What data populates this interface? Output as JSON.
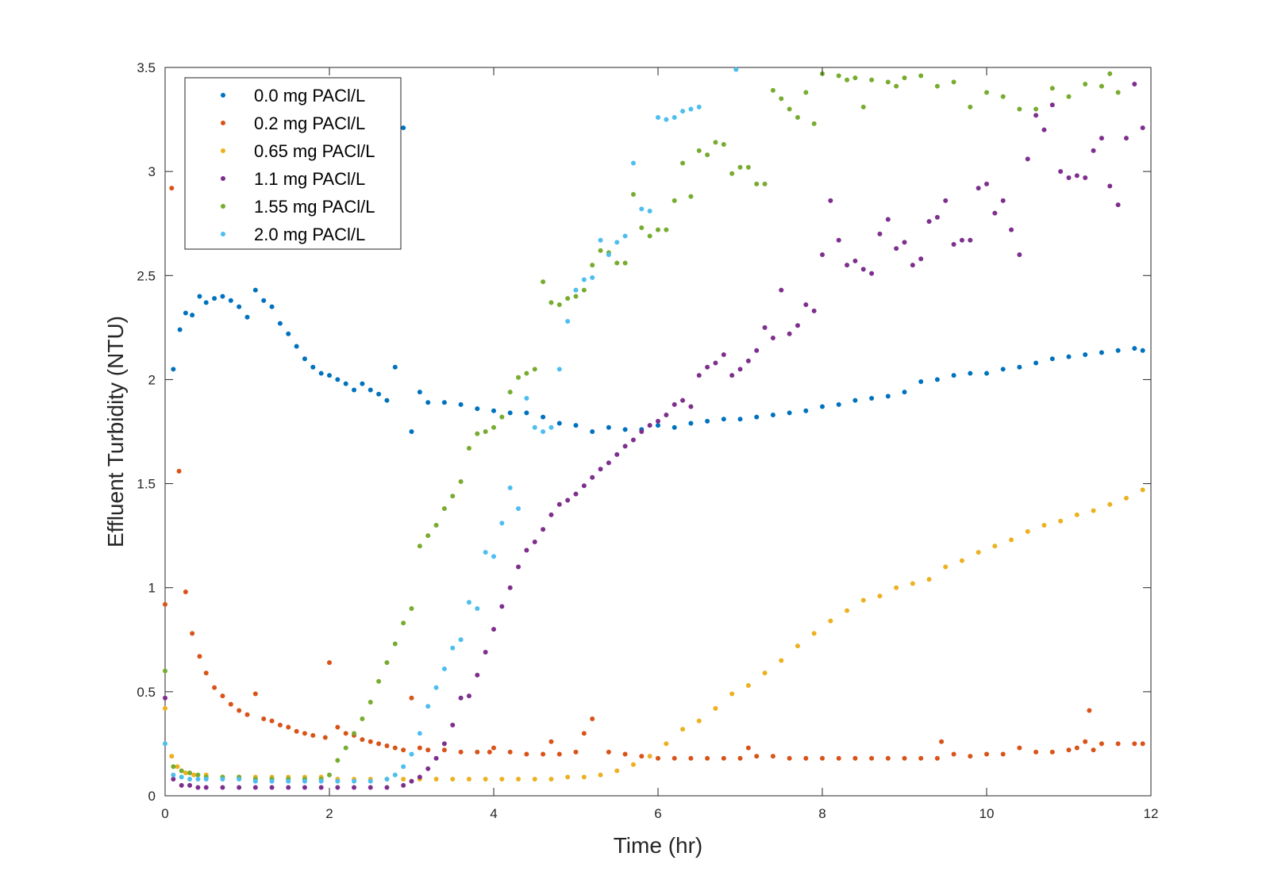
{
  "chart_data": {
    "type": "scatter",
    "title": "",
    "xlabel": "Time (hr)",
    "ylabel": "Effluent Turbidity (NTU)",
    "xlim": [
      0,
      12
    ],
    "ylim": [
      0,
      3.5
    ],
    "xticks": [
      0,
      2,
      4,
      6,
      8,
      10,
      12
    ],
    "yticks": [
      0,
      0.5,
      1,
      1.5,
      2,
      2.5,
      3,
      3.5
    ],
    "xtick_labels": [
      "0",
      "2",
      "4",
      "6",
      "8",
      "10",
      "12"
    ],
    "ytick_labels": [
      "0",
      "0.5",
      "1",
      "1.5",
      "2",
      "2.5",
      "3",
      "3.5"
    ],
    "grid": false,
    "legend_position": "top-left",
    "series": [
      {
        "name": "0.0 mg PACl/L",
        "color": "#0072BD",
        "x": [
          0.1,
          0.18,
          0.25,
          0.33,
          0.42,
          0.5,
          0.6,
          0.7,
          0.8,
          0.9,
          1.0,
          1.1,
          1.2,
          1.3,
          1.4,
          1.5,
          1.6,
          1.7,
          1.8,
          1.9,
          2.0,
          2.1,
          2.2,
          2.3,
          2.4,
          2.5,
          2.6,
          2.7,
          2.8,
          2.9,
          3.0,
          3.1,
          3.2,
          3.4,
          3.6,
          3.8,
          4.0,
          4.2,
          4.4,
          4.6,
          4.8,
          5.0,
          5.2,
          5.4,
          5.6,
          5.8,
          6.0,
          6.2,
          6.4,
          6.6,
          6.8,
          7.0,
          7.2,
          7.4,
          7.6,
          7.8,
          8.0,
          8.2,
          8.4,
          8.6,
          8.8,
          9.0,
          9.2,
          9.4,
          9.6,
          9.8,
          10.0,
          10.2,
          10.4,
          10.6,
          10.8,
          11.0,
          11.2,
          11.4,
          11.6,
          11.8,
          11.9
        ],
        "y": [
          2.05,
          2.24,
          2.32,
          2.31,
          2.4,
          2.37,
          2.39,
          2.4,
          2.38,
          2.35,
          2.3,
          2.43,
          2.38,
          2.35,
          2.27,
          2.22,
          2.16,
          2.1,
          2.06,
          2.03,
          2.02,
          2.0,
          1.98,
          1.95,
          1.98,
          1.95,
          1.93,
          1.9,
          2.06,
          3.21,
          1.75,
          1.94,
          1.89,
          1.89,
          1.88,
          1.86,
          1.85,
          1.84,
          1.84,
          1.82,
          1.79,
          1.78,
          1.75,
          1.77,
          1.76,
          1.76,
          1.78,
          1.77,
          1.79,
          1.8,
          1.81,
          1.81,
          1.82,
          1.83,
          1.84,
          1.85,
          1.87,
          1.88,
          1.9,
          1.91,
          1.92,
          1.94,
          1.99,
          2.0,
          2.02,
          2.03,
          2.03,
          2.05,
          2.06,
          2.08,
          2.1,
          2.11,
          2.12,
          2.13,
          2.14,
          2.15,
          2.14
        ]
      },
      {
        "name": "0.2 mg PACl/L",
        "color": "#D95319",
        "x": [
          0.0,
          0.08,
          0.17,
          0.25,
          0.33,
          0.42,
          0.5,
          0.6,
          0.7,
          0.8,
          0.9,
          1.0,
          1.1,
          1.2,
          1.3,
          1.4,
          1.5,
          1.6,
          1.7,
          1.8,
          1.95,
          2.0,
          2.1,
          2.2,
          2.3,
          2.4,
          2.5,
          2.6,
          2.7,
          2.8,
          2.9,
          3.0,
          3.1,
          3.2,
          3.4,
          3.6,
          3.8,
          3.95,
          4.0,
          4.2,
          4.4,
          4.6,
          4.7,
          4.8,
          5.0,
          5.1,
          5.2,
          5.4,
          5.6,
          5.8,
          6.0,
          6.2,
          6.4,
          6.6,
          6.8,
          7.0,
          7.1,
          7.2,
          7.4,
          7.6,
          7.8,
          8.0,
          8.2,
          8.4,
          8.6,
          8.8,
          9.0,
          9.2,
          9.4,
          9.45,
          9.6,
          9.8,
          10.0,
          10.2,
          10.4,
          10.6,
          10.8,
          11.0,
          11.1,
          11.2,
          11.25,
          11.3,
          11.4,
          11.6,
          11.8,
          11.9
        ],
        "y": [
          0.92,
          2.92,
          1.56,
          0.98,
          0.78,
          0.67,
          0.59,
          0.52,
          0.48,
          0.44,
          0.41,
          0.39,
          0.49,
          0.37,
          0.36,
          0.34,
          0.33,
          0.31,
          0.3,
          0.29,
          0.28,
          0.64,
          0.33,
          0.3,
          0.29,
          0.27,
          0.26,
          0.25,
          0.24,
          0.23,
          0.22,
          0.47,
          0.23,
          0.22,
          0.22,
          0.21,
          0.21,
          0.21,
          0.23,
          0.21,
          0.2,
          0.2,
          0.26,
          0.2,
          0.21,
          0.3,
          0.37,
          0.21,
          0.2,
          0.19,
          0.18,
          0.18,
          0.18,
          0.18,
          0.18,
          0.18,
          0.23,
          0.19,
          0.19,
          0.18,
          0.18,
          0.18,
          0.18,
          0.18,
          0.18,
          0.18,
          0.18,
          0.18,
          0.18,
          0.26,
          0.2,
          0.19,
          0.2,
          0.2,
          0.23,
          0.21,
          0.21,
          0.22,
          0.23,
          0.26,
          0.41,
          0.22,
          0.25,
          0.25,
          0.25,
          0.25
        ]
      },
      {
        "name": "0.65 mg PACl/L",
        "color": "#EDB120",
        "x": [
          0.0,
          0.08,
          0.15,
          0.25,
          0.35,
          0.5,
          0.7,
          0.9,
          1.1,
          1.3,
          1.5,
          1.7,
          1.9,
          2.1,
          2.3,
          2.5,
          2.7,
          2.9,
          3.1,
          3.3,
          3.5,
          3.7,
          3.9,
          4.1,
          4.3,
          4.5,
          4.7,
          4.9,
          5.1,
          5.3,
          5.5,
          5.7,
          5.9,
          6.1,
          6.3,
          6.5,
          6.7,
          6.9,
          7.1,
          7.3,
          7.5,
          7.7,
          7.9,
          8.1,
          8.3,
          8.5,
          8.7,
          8.9,
          9.1,
          9.3,
          9.5,
          9.7,
          9.9,
          10.1,
          10.3,
          10.5,
          10.7,
          10.9,
          11.1,
          11.3,
          11.5,
          11.7,
          11.9
        ],
        "y": [
          0.42,
          0.19,
          0.14,
          0.11,
          0.1,
          0.1,
          0.09,
          0.09,
          0.09,
          0.09,
          0.09,
          0.09,
          0.09,
          0.08,
          0.08,
          0.08,
          0.08,
          0.08,
          0.08,
          0.08,
          0.08,
          0.08,
          0.08,
          0.08,
          0.08,
          0.08,
          0.08,
          0.09,
          0.09,
          0.1,
          0.12,
          0.15,
          0.19,
          0.25,
          0.32,
          0.36,
          0.42,
          0.49,
          0.53,
          0.59,
          0.65,
          0.72,
          0.78,
          0.84,
          0.89,
          0.94,
          0.96,
          1.0,
          1.02,
          1.04,
          1.1,
          1.13,
          1.17,
          1.2,
          1.23,
          1.27,
          1.3,
          1.32,
          1.35,
          1.37,
          1.4,
          1.43,
          1.47
        ]
      },
      {
        "name": "1.1 mg PACl/L",
        "color": "#7E2F8E",
        "x": [
          0.0,
          0.1,
          0.2,
          0.3,
          0.4,
          0.5,
          0.7,
          0.9,
          1.1,
          1.3,
          1.5,
          1.7,
          1.9,
          2.1,
          2.3,
          2.5,
          2.7,
          2.9,
          3.0,
          3.1,
          3.2,
          3.3,
          3.4,
          3.5,
          3.6,
          3.7,
          3.8,
          3.9,
          4.0,
          4.1,
          4.2,
          4.3,
          4.4,
          4.5,
          4.6,
          4.7,
          4.8,
          4.9,
          5.0,
          5.1,
          5.2,
          5.3,
          5.4,
          5.5,
          5.6,
          5.7,
          5.8,
          5.9,
          6.0,
          6.1,
          6.2,
          6.3,
          6.4,
          6.5,
          6.6,
          6.7,
          6.8,
          6.9,
          7.0,
          7.1,
          7.2,
          7.3,
          7.4,
          7.5,
          7.6,
          7.7,
          7.8,
          7.9,
          8.0,
          8.1,
          8.2,
          8.3,
          8.4,
          8.5,
          8.6,
          8.7,
          8.8,
          8.9,
          9.0,
          9.1,
          9.2,
          9.3,
          9.4,
          9.5,
          9.6,
          9.7,
          9.8,
          9.9,
          10.0,
          10.1,
          10.2,
          10.3,
          10.4,
          10.5,
          10.6,
          10.7,
          10.8,
          10.9,
          11.0,
          11.1,
          11.2,
          11.3,
          11.4,
          11.5,
          11.6,
          11.7,
          11.8,
          11.9
        ],
        "y": [
          0.47,
          0.08,
          0.05,
          0.05,
          0.04,
          0.04,
          0.04,
          0.04,
          0.04,
          0.04,
          0.04,
          0.04,
          0.04,
          0.04,
          0.04,
          0.04,
          0.04,
          0.05,
          0.07,
          0.09,
          0.13,
          0.18,
          0.25,
          0.34,
          0.47,
          0.48,
          0.58,
          0.69,
          0.8,
          0.91,
          1.0,
          1.1,
          1.18,
          1.22,
          1.28,
          1.35,
          1.4,
          1.42,
          1.45,
          1.49,
          1.53,
          1.57,
          1.6,
          1.64,
          1.68,
          1.71,
          1.75,
          1.78,
          1.8,
          1.83,
          1.88,
          1.9,
          1.87,
          2.02,
          2.06,
          2.08,
          2.12,
          2.02,
          2.05,
          2.09,
          2.14,
          2.25,
          2.2,
          2.43,
          2.22,
          2.26,
          2.36,
          2.33,
          2.6,
          2.86,
          2.67,
          2.55,
          2.57,
          2.53,
          2.51,
          2.7,
          2.77,
          2.63,
          2.66,
          2.55,
          2.58,
          2.76,
          2.78,
          2.86,
          2.65,
          2.67,
          2.67,
          2.92,
          2.94,
          2.8,
          2.86,
          2.72,
          2.6,
          3.06,
          3.27,
          3.2,
          3.32,
          3.0,
          2.97,
          2.98,
          2.97,
          3.1,
          3.16,
          2.93,
          2.84,
          3.16,
          3.42,
          3.21
        ]
      },
      {
        "name": "1.55 mg PACl/L",
        "color": "#77AC30",
        "x": [
          0.0,
          0.1,
          0.2,
          0.3,
          0.4,
          0.5,
          0.7,
          0.9,
          1.1,
          1.3,
          1.5,
          1.7,
          1.9,
          2.0,
          2.1,
          2.2,
          2.3,
          2.4,
          2.5,
          2.6,
          2.7,
          2.8,
          2.9,
          3.0,
          3.1,
          3.2,
          3.3,
          3.4,
          3.5,
          3.6,
          3.7,
          3.8,
          3.9,
          4.0,
          4.1,
          4.2,
          4.3,
          4.4,
          4.5,
          4.6,
          4.7,
          4.8,
          4.9,
          5.0,
          5.1,
          5.2,
          5.3,
          5.4,
          5.5,
          5.6,
          5.7,
          5.8,
          5.9,
          6.0,
          6.1,
          6.2,
          6.3,
          6.4,
          6.5,
          6.6,
          6.7,
          6.8,
          6.9,
          7.0,
          7.1,
          7.2,
          7.3,
          7.4,
          7.5,
          7.6,
          7.7,
          7.8,
          7.9,
          8.0,
          8.2,
          8.3,
          8.4,
          8.5,
          8.6,
          8.8,
          8.9,
          9.0,
          9.2,
          9.4,
          9.6,
          9.8,
          10.0,
          10.2,
          10.4,
          10.6,
          10.8,
          11.0,
          11.2,
          11.4,
          11.5,
          11.6
        ],
        "y": [
          0.6,
          0.14,
          0.12,
          0.11,
          0.1,
          0.09,
          0.09,
          0.09,
          0.08,
          0.08,
          0.08,
          0.08,
          0.08,
          0.1,
          0.17,
          0.23,
          0.3,
          0.37,
          0.45,
          0.55,
          0.64,
          0.73,
          0.83,
          0.9,
          1.2,
          1.25,
          1.3,
          1.38,
          1.44,
          1.51,
          1.67,
          1.74,
          1.75,
          1.77,
          1.82,
          1.94,
          2.01,
          2.03,
          2.05,
          2.47,
          2.37,
          2.36,
          2.39,
          2.4,
          2.43,
          2.55,
          2.62,
          2.61,
          2.56,
          2.56,
          2.89,
          2.73,
          2.69,
          2.72,
          2.72,
          2.86,
          3.04,
          2.88,
          3.1,
          3.08,
          3.14,
          3.13,
          2.99,
          3.02,
          3.02,
          2.94,
          2.94,
          3.39,
          3.35,
          3.3,
          3.26,
          3.38,
          3.23,
          3.47,
          3.46,
          3.44,
          3.45,
          3.31,
          3.44,
          3.43,
          3.41,
          3.45,
          3.46,
          3.41,
          3.43,
          3.31,
          3.38,
          3.36,
          3.3,
          3.3,
          3.4,
          3.36,
          3.42,
          3.41,
          3.47,
          3.38
        ]
      },
      {
        "name": "2.0 mg PACl/L",
        "color": "#4DBEEE",
        "x": [
          0.0,
          0.1,
          0.2,
          0.3,
          0.4,
          0.5,
          0.7,
          0.9,
          1.1,
          1.3,
          1.5,
          1.7,
          1.9,
          2.1,
          2.3,
          2.5,
          2.7,
          2.8,
          2.9,
          3.0,
          3.1,
          3.2,
          3.3,
          3.4,
          3.5,
          3.6,
          3.7,
          3.8,
          3.9,
          4.0,
          4.1,
          4.2,
          4.3,
          4.4,
          4.5,
          4.6,
          4.7,
          4.8,
          4.9,
          5.0,
          5.1,
          5.2,
          5.3,
          5.4,
          5.5,
          5.6,
          5.7,
          5.8,
          5.9,
          6.0,
          6.1,
          6.2,
          6.3,
          6.4,
          6.5,
          6.95
        ],
        "y": [
          0.25,
          0.1,
          0.09,
          0.08,
          0.08,
          0.08,
          0.08,
          0.08,
          0.07,
          0.07,
          0.07,
          0.07,
          0.07,
          0.07,
          0.07,
          0.07,
          0.08,
          0.1,
          0.14,
          0.2,
          0.3,
          0.43,
          0.52,
          0.61,
          0.71,
          0.75,
          0.93,
          0.9,
          1.17,
          1.15,
          1.31,
          1.48,
          1.38,
          1.91,
          1.77,
          1.75,
          1.77,
          2.05,
          2.28,
          2.43,
          2.48,
          2.49,
          2.67,
          2.6,
          2.66,
          2.69,
          3.04,
          2.82,
          2.81,
          3.26,
          3.25,
          3.26,
          3.29,
          3.3,
          3.31,
          3.49
        ]
      }
    ]
  }
}
